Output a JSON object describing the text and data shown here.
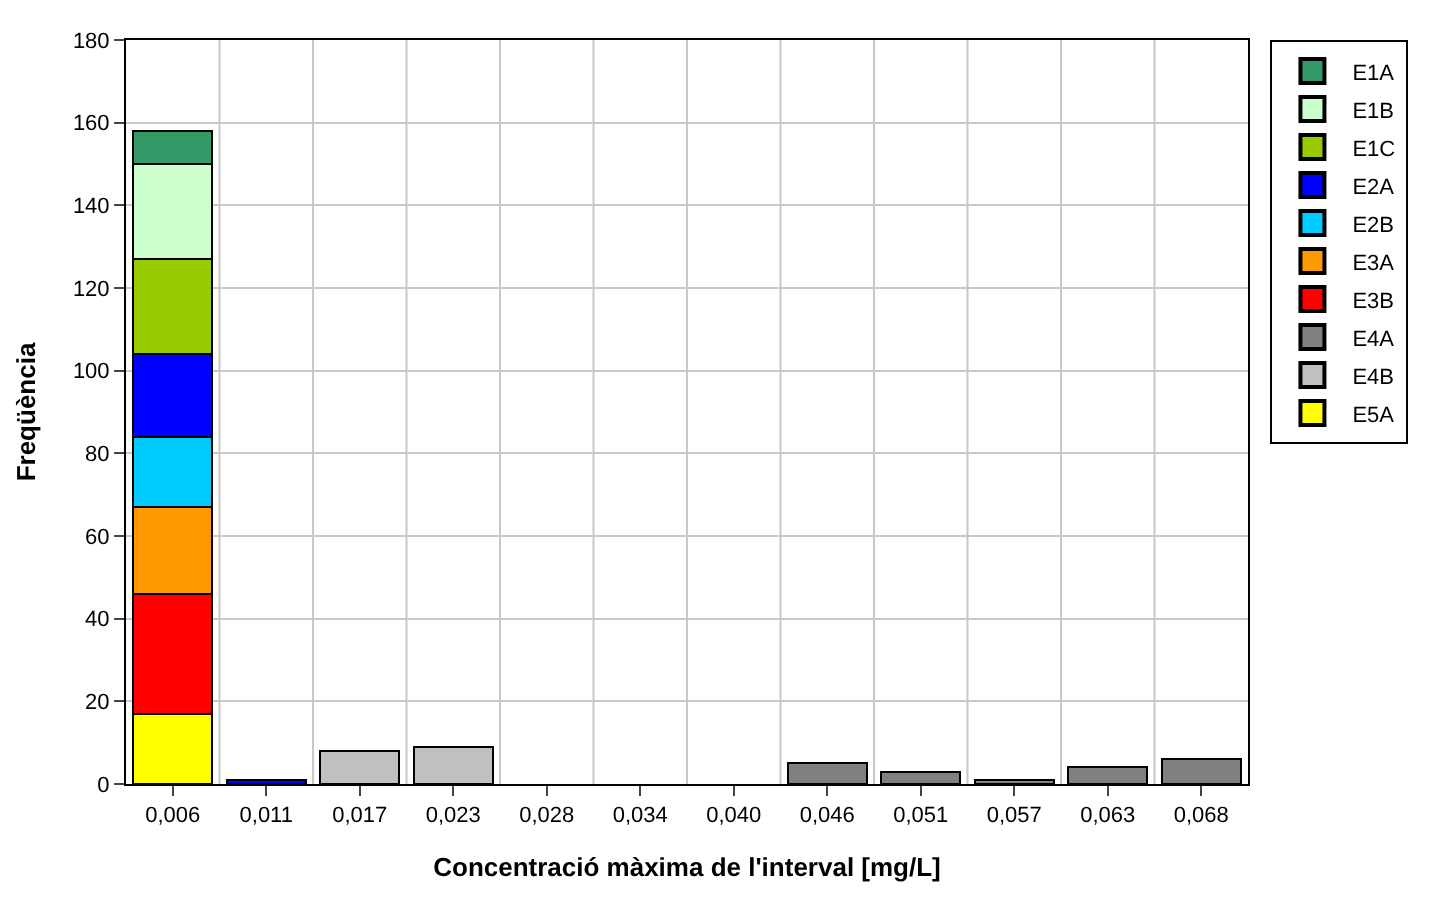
{
  "chart_data": {
    "type": "bar",
    "stacked": true,
    "xlabel": "Concentració màxima de l'interval [mg/L]",
    "ylabel": "Freqüència",
    "categories": [
      "0,006",
      "0,011",
      "0,017",
      "0,023",
      "0,028",
      "0,034",
      "0,040",
      "0,046",
      "0,051",
      "0,057",
      "0,063",
      "0,068"
    ],
    "ylim": [
      0,
      180
    ],
    "yticks": [
      0,
      20,
      40,
      60,
      80,
      100,
      120,
      140,
      160,
      180
    ],
    "grid": true,
    "legend": "right",
    "series": [
      {
        "name": "E5A",
        "color": "#ffff00",
        "values": [
          17,
          null,
          null,
          null,
          null,
          null,
          null,
          null,
          null,
          null,
          null,
          null
        ]
      },
      {
        "name": "E4B",
        "color": "#c0c0c0",
        "values": [
          null,
          null,
          8,
          9,
          null,
          null,
          null,
          null,
          null,
          null,
          null,
          null
        ]
      },
      {
        "name": "E4A",
        "color": "#808080",
        "values": [
          null,
          null,
          null,
          null,
          null,
          null,
          null,
          5,
          3,
          1,
          4,
          6
        ]
      },
      {
        "name": "E3B",
        "color": "#ff0000",
        "values": [
          29,
          null,
          null,
          null,
          null,
          null,
          null,
          null,
          null,
          null,
          null,
          null
        ]
      },
      {
        "name": "E3A",
        "color": "#ff9900",
        "values": [
          21,
          null,
          null,
          null,
          null,
          null,
          null,
          null,
          null,
          null,
          null,
          null
        ]
      },
      {
        "name": "E2B",
        "color": "#00ccff",
        "values": [
          17,
          null,
          null,
          null,
          null,
          null,
          null,
          null,
          null,
          null,
          null,
          null
        ]
      },
      {
        "name": "E2A",
        "color": "#0000ff",
        "values": [
          20,
          1,
          null,
          null,
          null,
          null,
          null,
          null,
          null,
          null,
          null,
          null
        ]
      },
      {
        "name": "E1C",
        "color": "#99cc00",
        "values": [
          23,
          null,
          null,
          null,
          null,
          null,
          null,
          null,
          null,
          null,
          null,
          null
        ]
      },
      {
        "name": "E1B",
        "color": "#ccffcc",
        "values": [
          23,
          null,
          null,
          null,
          null,
          null,
          null,
          null,
          null,
          null,
          null,
          null
        ]
      },
      {
        "name": "E1A",
        "color": "#339966",
        "values": [
          8,
          null,
          null,
          null,
          null,
          null,
          null,
          null,
          null,
          null,
          null,
          null
        ]
      }
    ]
  }
}
